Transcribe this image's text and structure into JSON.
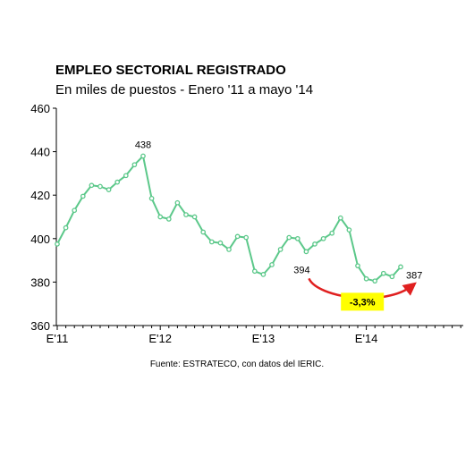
{
  "chart_data": {
    "type": "line",
    "title": "EMPLEO SECTORIAL REGISTRADO",
    "subtitle": "En miles de puestos - Enero '11 a mayo '14",
    "source": "Fuente: ESTRATECO, con datos del IERIC.",
    "x_tick_labels": [
      "E'11",
      "E'12",
      "E'13",
      "E'14"
    ],
    "ylim": [
      360,
      460
    ],
    "y_ticks": [
      360,
      380,
      400,
      420,
      440,
      460
    ],
    "series": [
      {
        "values": [
          397.5,
          405,
          413,
          419.5,
          424.5,
          424,
          422.5,
          426,
          429,
          434,
          438,
          418.5,
          410,
          409,
          416.5,
          411,
          410,
          403,
          398.5,
          398,
          395,
          401,
          400.5,
          385,
          383.5,
          388,
          395,
          400.5,
          400,
          394,
          397.5,
          400,
          402.5,
          409.5,
          404,
          387.5,
          381.5,
          380.5,
          384,
          382.5,
          387
        ]
      }
    ],
    "data_labels": [
      {
        "index": 10,
        "text": "438"
      },
      {
        "index": 29,
        "text": "394"
      },
      {
        "index": 40,
        "text": "387"
      }
    ],
    "annotation": {
      "text": "-3,3%",
      "from_index": 29,
      "to_index": 40
    },
    "colors": {
      "line": "#5cc88a",
      "arrow": "#e02020",
      "annotation_bg": "#ffff00",
      "axis": "#000000"
    },
    "grid": false,
    "legend": "none"
  }
}
